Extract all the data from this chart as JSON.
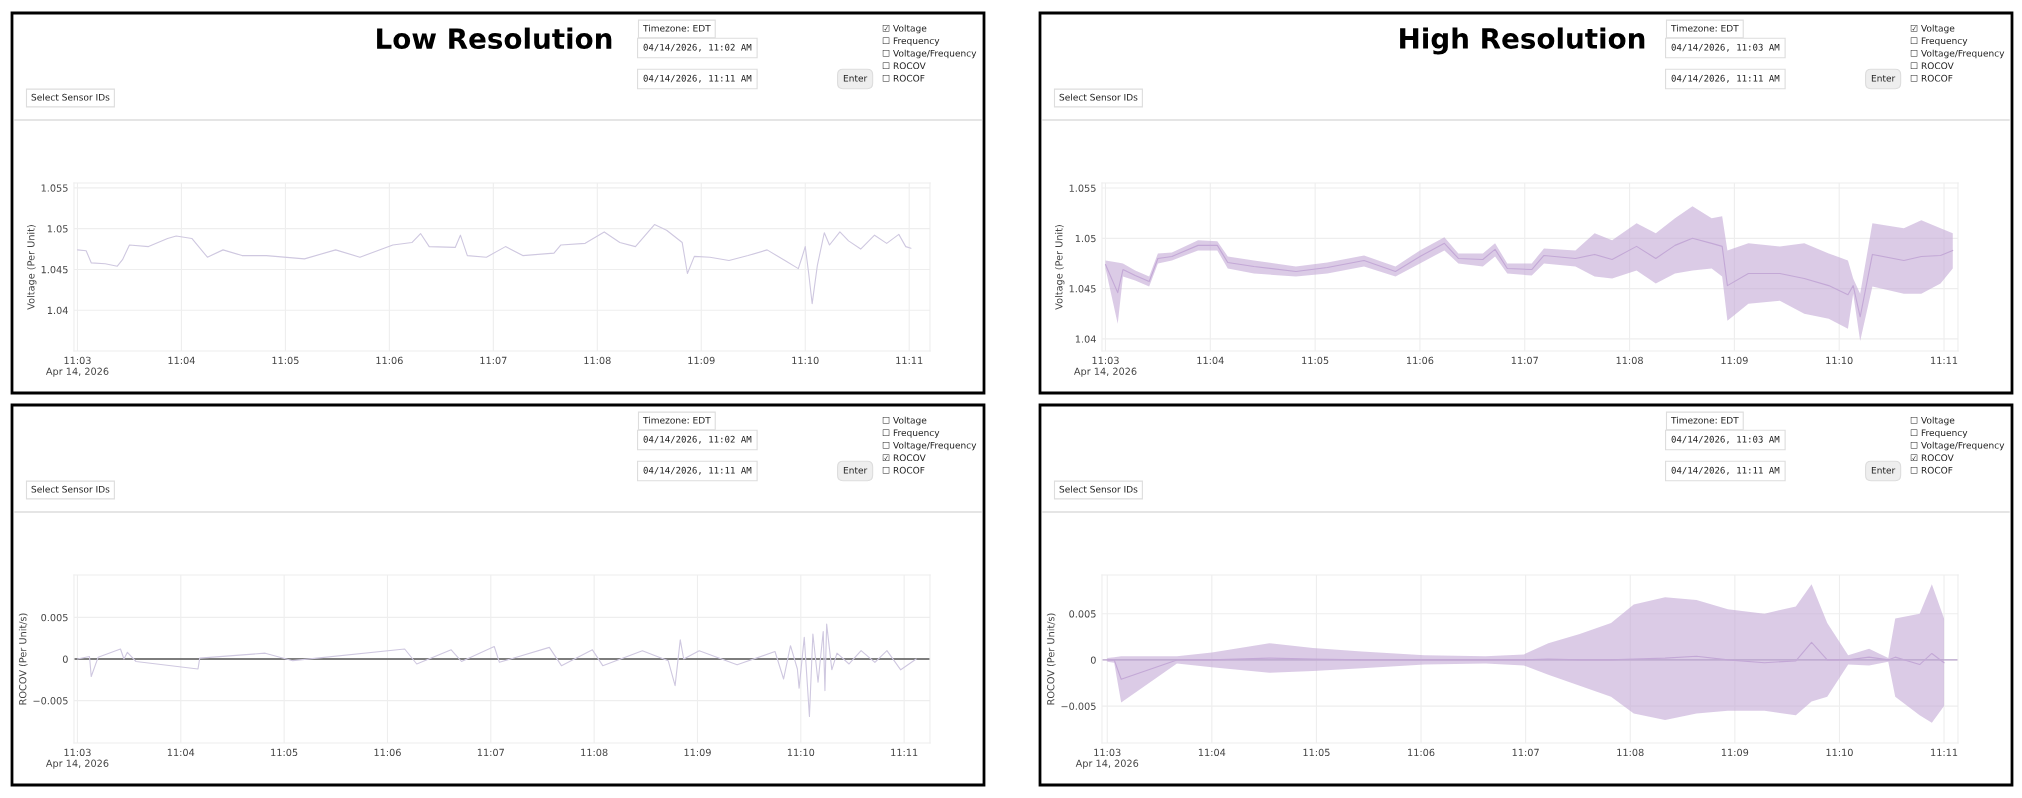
{
  "chart_data": [
    {
      "type": "line",
      "title": "Low Resolution",
      "ylabel": "Voltage (Per Unit)",
      "annotations": [
        "Timezone: EDT",
        "04/14/2026, 11:02 AM",
        "04/14/2026, 11:11 AM",
        "Enter",
        "Select Sensor IDs",
        "☑ Voltage",
        "☐ Frequency",
        "☐ Voltage/Frequency",
        "☐ ROCOV",
        "☐ ROCOF"
      ],
      "x": [
        "2026-04-14T11:03:00",
        "2026-04-14T11:03:05",
        "2026-04-14T11:03:08",
        "2026-04-14T11:03:16",
        "2026-04-14T11:03:23",
        "2026-04-14T11:03:26",
        "2026-04-14T11:03:30",
        "2026-04-14T11:03:41",
        "2026-04-14T11:03:52",
        "2026-04-14T11:03:57",
        "2026-04-14T11:04:06",
        "2026-04-14T11:04:15",
        "2026-04-14T11:04:24",
        "2026-04-14T11:04:35",
        "2026-04-14T11:04:49",
        "2026-04-14T11:05:11",
        "2026-04-14T11:05:29",
        "2026-04-14T11:05:43",
        "2026-04-14T11:06:02",
        "2026-04-14T11:06:13",
        "2026-04-14T11:06:18",
        "2026-04-14T11:06:23",
        "2026-04-14T11:06:38",
        "2026-04-14T11:06:41",
        "2026-04-14T11:06:45",
        "2026-04-14T11:06:56",
        "2026-04-14T11:07:07",
        "2026-04-14T11:07:17",
        "2026-04-14T11:07:35",
        "2026-04-14T11:07:39",
        "2026-04-14T11:07:53",
        "2026-04-14T11:08:04",
        "2026-04-14T11:08:13",
        "2026-04-14T11:08:22",
        "2026-04-14T11:08:33",
        "2026-04-14T11:08:40",
        "2026-04-14T11:08:49",
        "2026-04-14T11:08:52",
        "2026-04-14T11:08:56",
        "2026-04-14T11:09:05",
        "2026-04-14T11:09:16",
        "2026-04-14T11:09:27",
        "2026-04-14T11:09:38",
        "2026-04-14T11:09:49",
        "2026-04-14T11:09:56",
        "2026-04-14T11:09:58",
        "2026-04-14T11:10:00",
        "2026-04-14T11:10:02",
        "2026-04-14T11:10:04",
        "2026-04-14T11:10:07",
        "2026-04-14T11:10:11",
        "2026-04-14T11:10:14",
        "2026-04-14T11:10:20",
        "2026-04-14T11:10:25",
        "2026-04-14T11:10:32",
        "2026-04-14T11:10:40",
        "2026-04-14T11:10:47",
        "2026-04-14T11:10:54",
        "2026-04-14T11:10:58",
        "2026-04-14T11:11:01"
      ],
      "series": [
        {
          "color": "#cfc8e0",
          "values": [
            1.0474,
            1.0473,
            1.0458,
            1.0457,
            1.0454,
            1.0462,
            1.048,
            1.0478,
            1.0488,
            1.0491,
            1.0488,
            1.0465,
            1.0474,
            1.0467,
            1.0467,
            1.0463,
            1.0474,
            1.0465,
            1.048,
            1.0483,
            1.0494,
            1.0478,
            1.0477,
            1.0492,
            1.0467,
            1.0465,
            1.0478,
            1.0467,
            1.047,
            1.048,
            1.0482,
            1.0496,
            1.0483,
            1.0478,
            1.0505,
            1.0498,
            1.0483,
            1.0445,
            1.0466,
            1.0465,
            1.0461,
            1.0467,
            1.0474,
            1.046,
            1.0451,
            1.0464,
            1.0478,
            1.0445,
            1.0408,
            1.0455,
            1.0495,
            1.048,
            1.0496,
            1.0485,
            1.0475,
            1.0492,
            1.0482,
            1.0493,
            1.0478,
            1.0476
          ]
        }
      ],
      "xlim": [
        "2026-04-14T11:02:58",
        "2026-04-14T11:11:12"
      ],
      "ylim": [
        1.035,
        1.0556
      ],
      "xticks": [
        {
          "value": "2026-04-14T11:03",
          "label": "11:03\nApr 14, 2026"
        },
        {
          "value": "2026-04-14T11:04",
          "label": "11:04"
        },
        {
          "value": "2026-04-14T11:05",
          "label": "11:05"
        },
        {
          "value": "2026-04-14T11:06",
          "label": "11:06"
        },
        {
          "value": "2026-04-14T11:07",
          "label": "11:07"
        },
        {
          "value": "2026-04-14T11:08",
          "label": "11:08"
        },
        {
          "value": "2026-04-14T11:09",
          "label": "11:09"
        },
        {
          "value": "2026-04-14T11:10",
          "label": "11:10"
        },
        {
          "value": "2026-04-14T11:11",
          "label": "11:11"
        }
      ],
      "yticks": [
        1.04,
        1.045,
        1.05,
        1.055
      ],
      "grid": true
    },
    {
      "type": "line",
      "title": "High Resolution",
      "ylabel": "Voltage (Per Unit)",
      "annotations": [
        "Timezone: EDT",
        "04/14/2026, 11:03 AM",
        "04/14/2026, 11:11 AM",
        "Enter",
        "Select Sensor IDs",
        "☑ Voltage",
        "☐ Frequency",
        "☐ Voltage/Frequency",
        "☐ ROCOV",
        "☐ ROCOF"
      ],
      "x": [
        "2026-04-14T11:03:00",
        "2026-04-14T11:03:07",
        "2026-04-14T11:03:10",
        "2026-04-14T11:03:17",
        "2026-04-14T11:03:25",
        "2026-04-14T11:03:30",
        "2026-04-14T11:03:38",
        "2026-04-14T11:03:53",
        "2026-04-14T11:04:04",
        "2026-04-14T11:04:10",
        "2026-04-14T11:04:25",
        "2026-04-14T11:04:49",
        "2026-04-14T11:05:07",
        "2026-04-14T11:05:28",
        "2026-04-14T11:05:46",
        "2026-04-14T11:06:00",
        "2026-04-14T11:06:14",
        "2026-04-14T11:06:22",
        "2026-04-14T11:06:36",
        "2026-04-14T11:06:43",
        "2026-04-14T11:06:50",
        "2026-04-14T11:07:04",
        "2026-04-14T11:07:11",
        "2026-04-14T11:07:29",
        "2026-04-14T11:07:40",
        "2026-04-14T11:07:50",
        "2026-04-14T11:08:04",
        "2026-04-14T11:08:15",
        "2026-04-14T11:08:26",
        "2026-04-14T11:08:36",
        "2026-04-14T11:08:47",
        "2026-04-14T11:08:53",
        "2026-04-14T11:08:56",
        "2026-04-14T11:09:08",
        "2026-04-14T11:09:26",
        "2026-04-14T11:09:40",
        "2026-04-14T11:09:54",
        "2026-04-14T11:10:05",
        "2026-04-14T11:10:08",
        "2026-04-14T11:10:12",
        "2026-04-14T11:10:19",
        "2026-04-14T11:10:37",
        "2026-04-14T11:10:47",
        "2026-04-14T11:10:58",
        "2026-04-14T11:11:05"
      ],
      "series": [
        {
          "color": "#c3a8d6",
          "values": [
            1.0474,
            1.0446,
            1.0469,
            1.0463,
            1.0457,
            1.048,
            1.0482,
            1.0493,
            1.0493,
            1.0476,
            1.0472,
            1.0467,
            1.0471,
            1.0478,
            1.0467,
            1.0482,
            1.0495,
            1.048,
            1.0479,
            1.0489,
            1.047,
            1.0469,
            1.0483,
            1.048,
            1.0484,
            1.0479,
            1.0492,
            1.048,
            1.0493,
            1.05,
            1.0495,
            1.0492,
            1.0453,
            1.0465,
            1.0465,
            1.046,
            1.0453,
            1.0444,
            1.0453,
            1.0422,
            1.0484,
            1.0478,
            1.0482,
            1.0483,
            1.0488
          ],
          "lower": [
            1.047,
            1.0415,
            1.0462,
            1.0458,
            1.0452,
            1.0475,
            1.0478,
            1.0488,
            1.0488,
            1.047,
            1.0465,
            1.0462,
            1.0465,
            1.0472,
            1.0462,
            1.0475,
            1.0488,
            1.0475,
            1.0472,
            1.0482,
            1.0465,
            1.0463,
            1.0475,
            1.0472,
            1.0462,
            1.046,
            1.0468,
            1.0455,
            1.0465,
            1.0468,
            1.047,
            1.0462,
            1.0418,
            1.0435,
            1.0438,
            1.0425,
            1.042,
            1.041,
            1.0445,
            1.0398,
            1.0452,
            1.0445,
            1.0445,
            1.0455,
            1.047
          ],
          "upper": [
            1.0478,
            1.0476,
            1.0475,
            1.0468,
            1.0462,
            1.0485,
            1.0486,
            1.0498,
            1.0497,
            1.0482,
            1.0478,
            1.0472,
            1.0476,
            1.0483,
            1.0472,
            1.0488,
            1.0501,
            1.0485,
            1.0485,
            1.0495,
            1.0475,
            1.0475,
            1.049,
            1.0488,
            1.0505,
            1.0498,
            1.0515,
            1.0505,
            1.052,
            1.0532,
            1.052,
            1.0522,
            1.0488,
            1.0495,
            1.0492,
            1.0495,
            1.0485,
            1.0478,
            1.046,
            1.0445,
            1.0515,
            1.051,
            1.0518,
            1.051,
            1.0505
          ]
        }
      ],
      "xlim": [
        "2026-04-14T11:02:58",
        "2026-04-14T11:11:08"
      ],
      "ylim": [
        1.0388,
        1.0555
      ],
      "xticks": [
        {
          "value": "2026-04-14T11:03",
          "label": "11:03\nApr 14, 2026"
        },
        {
          "value": "2026-04-14T11:04",
          "label": "11:04"
        },
        {
          "value": "2026-04-14T11:05",
          "label": "11:05"
        },
        {
          "value": "2026-04-14T11:06",
          "label": "11:06"
        },
        {
          "value": "2026-04-14T11:07",
          "label": "11:07"
        },
        {
          "value": "2026-04-14T11:08",
          "label": "11:08"
        },
        {
          "value": "2026-04-14T11:09",
          "label": "11:09"
        },
        {
          "value": "2026-04-14T11:10",
          "label": "11:10"
        },
        {
          "value": "2026-04-14T11:11",
          "label": "11:11"
        }
      ],
      "yticks": [
        1.04,
        1.045,
        1.05,
        1.055
      ],
      "grid": true
    },
    {
      "type": "line",
      "ylabel": "ROCOV (Per Unit/s)",
      "annotations": [
        "Timezone: EDT",
        "04/14/2026, 11:02 AM",
        "04/14/2026, 11:11 AM",
        "Enter",
        "Select Sensor IDs",
        "☐ Voltage",
        "☐ Frequency",
        "☐ Voltage/Frequency",
        "☑ ROCOV",
        "☐ ROCOF"
      ],
      "x": [
        "2026-04-14T11:03:00",
        "2026-04-14T11:03:07",
        "2026-04-14T11:03:08",
        "2026-04-14T11:03:12",
        "2026-04-14T11:03:25",
        "2026-04-14T11:03:27",
        "2026-04-14T11:03:29",
        "2026-04-14T11:03:34",
        "2026-04-14T11:04:10",
        "2026-04-14T11:04:11",
        "2026-04-14T11:04:49",
        "2026-04-14T11:05:05",
        "2026-04-14T11:06:10",
        "2026-04-14T11:06:17",
        "2026-04-14T11:06:37",
        "2026-04-14T11:06:43",
        "2026-04-14T11:07:02",
        "2026-04-14T11:07:05",
        "2026-04-14T11:07:34",
        "2026-04-14T11:07:41",
        "2026-04-14T11:07:59",
        "2026-04-14T11:08:05",
        "2026-04-14T11:08:28",
        "2026-04-14T11:08:43",
        "2026-04-14T11:08:47",
        "2026-04-14T11:08:50",
        "2026-04-14T11:08:52",
        "2026-04-14T11:09:01",
        "2026-04-14T11:09:23",
        "2026-04-14T11:09:45",
        "2026-04-14T11:09:50",
        "2026-04-14T11:09:54",
        "2026-04-14T11:09:58",
        "2026-04-14T11:09:59",
        "2026-04-14T11:10:02",
        "2026-04-14T11:10:05",
        "2026-04-14T11:10:07",
        "2026-04-14T11:10:10",
        "2026-04-14T11:10:13",
        "2026-04-14T11:10:14",
        "2026-04-14T11:10:15",
        "2026-04-14T11:10:18",
        "2026-04-14T11:10:21",
        "2026-04-14T11:10:28",
        "2026-04-14T11:10:35",
        "2026-04-14T11:10:43",
        "2026-04-14T11:10:50",
        "2026-04-14T11:10:58",
        "2026-04-14T11:11:07"
      ],
      "series": [
        {
          "color": "#cfc8e0",
          "values": [
            0,
            0.0003,
            -0.0021,
            0.0002,
            0.0012,
            0,
            0.0008,
            -0.0003,
            -0.0012,
            0.0001,
            0.0007,
            -0.0002,
            0.0012,
            -0.0006,
            0.0011,
            -0.0003,
            0.0015,
            -0.0004,
            0.0014,
            -0.0008,
            0.0011,
            -0.0008,
            0.001,
            -0.0002,
            -0.0032,
            0.0023,
            0,
            0.001,
            -0.0007,
            0.0009,
            -0.0024,
            0.0016,
            -0.0012,
            -0.0035,
            0.0026,
            -0.0069,
            0.003,
            -0.0028,
            0.0033,
            -0.0038,
            0.0042,
            -0.0013,
            0.0007,
            -0.0006,
            0.001,
            -0.0004,
            0.001,
            -0.0013,
            0
          ]
        }
      ],
      "ref_lines": [
        {
          "axis": "y",
          "value": 0,
          "color": "#555555"
        }
      ],
      "xlim": [
        "2026-04-14T11:02:58",
        "2026-04-14T11:11:15"
      ],
      "ylim": [
        -0.0101,
        0.0101
      ],
      "xticks": [
        {
          "value": "2026-04-14T11:03",
          "label": "11:03\nApr 14, 2026"
        },
        {
          "value": "2026-04-14T11:04",
          "label": "11:04"
        },
        {
          "value": "2026-04-14T11:05",
          "label": "11:05"
        },
        {
          "value": "2026-04-14T11:06",
          "label": "11:06"
        },
        {
          "value": "2026-04-14T11:07",
          "label": "11:07"
        },
        {
          "value": "2026-04-14T11:08",
          "label": "11:08"
        },
        {
          "value": "2026-04-14T11:09",
          "label": "11:09"
        },
        {
          "value": "2026-04-14T11:10",
          "label": "11:10"
        },
        {
          "value": "2026-04-14T11:11",
          "label": "11:11"
        }
      ],
      "yticks": [
        {
          "value": -0.005,
          "label": "−0.005"
        },
        0,
        0.005
      ],
      "grid": true
    },
    {
      "type": "line",
      "ylabel": "ROCOV (Per Unit/s)",
      "annotations": [
        "Timezone: EDT",
        "04/14/2026, 11:03 AM",
        "04/14/2026, 11:11 AM",
        "Enter",
        "Select Sensor IDs",
        "☐ Voltage",
        "☐ Frequency",
        "☐ Voltage/Frequency",
        "☑ ROCOV",
        "☐ ROCOF"
      ],
      "x": [
        "2026-04-14T11:03:00",
        "2026-04-14T11:03:04",
        "2026-04-14T11:03:08",
        "2026-04-14T11:03:40",
        "2026-04-14T11:04:00",
        "2026-04-14T11:04:33",
        "2026-04-14T11:04:58",
        "2026-04-14T11:05:26",
        "2026-04-14T11:06:02",
        "2026-04-14T11:06:37",
        "2026-04-14T11:06:59",
        "2026-04-14T11:07:13",
        "2026-04-14T11:07:31",
        "2026-04-14T11:07:49",
        "2026-04-14T11:08:02",
        "2026-04-14T11:08:20",
        "2026-04-14T11:08:38",
        "2026-04-14T11:08:56",
        "2026-04-14T11:09:17",
        "2026-04-14T11:09:35",
        "2026-04-14T11:09:44",
        "2026-04-14T11:09:53",
        "2026-04-14T11:10:05",
        "2026-04-14T11:10:17",
        "2026-04-14T11:10:28",
        "2026-04-14T11:10:32",
        "2026-04-14T11:10:46",
        "2026-04-14T11:10:53",
        "2026-04-14T11:11:00"
      ],
      "series": [
        {
          "color": "#c3a8d6",
          "values": [
            0,
            0,
            -0.0021,
            0,
            0,
            0.0002,
            0.0001,
            0,
            0,
            0,
            0,
            0.0001,
            0,
            0,
            0.0001,
            0.0002,
            0.0004,
            0,
            -0.0003,
            -0.0001,
            0.0019,
            0,
            0,
            0.0003,
            0,
            0.0003,
            -0.0005,
            0.0007,
            -0.0003
          ],
          "lower": [
            -0.0002,
            -0.0003,
            -0.0046,
            -0.0004,
            -0.0008,
            -0.0014,
            -0.0012,
            -0.0009,
            -0.0005,
            -0.0004,
            -0.0006,
            -0.0016,
            -0.0028,
            -0.004,
            -0.0058,
            -0.0065,
            -0.0058,
            -0.0055,
            -0.0055,
            -0.006,
            -0.0045,
            -0.004,
            -0.0005,
            -0.0006,
            -0.0002,
            -0.004,
            -0.006,
            -0.0068,
            -0.005
          ],
          "upper": [
            0.0002,
            0.0003,
            0.0004,
            0.0004,
            0.0008,
            0.0018,
            0.0013,
            0.0009,
            0.0005,
            0.0004,
            0.0006,
            0.0018,
            0.0028,
            0.004,
            0.006,
            0.0068,
            0.0065,
            0.0055,
            0.005,
            0.0058,
            0.0082,
            0.004,
            0.0005,
            0.0012,
            0.0002,
            0.0045,
            0.005,
            0.0082,
            0.0045
          ]
        }
      ],
      "ref_lines": [
        {
          "axis": "y",
          "value": 0,
          "color": "#b9a3cc"
        }
      ],
      "xlim": [
        "2026-04-14T11:02:57",
        "2026-04-14T11:11:08"
      ],
      "ylim": [
        -0.009,
        0.0092
      ],
      "xticks": [
        {
          "value": "2026-04-14T11:03",
          "label": "11:03\nApr 14, 2026"
        },
        {
          "value": "2026-04-14T11:04",
          "label": "11:04"
        },
        {
          "value": "2026-04-14T11:05",
          "label": "11:05"
        },
        {
          "value": "2026-04-14T11:06",
          "label": "11:06"
        },
        {
          "value": "2026-04-14T11:07",
          "label": "11:07"
        },
        {
          "value": "2026-04-14T11:08",
          "label": "11:08"
        },
        {
          "value": "2026-04-14T11:09",
          "label": "11:09"
        },
        {
          "value": "2026-04-14T11:10",
          "label": "11:10"
        },
        {
          "value": "2026-04-14T11:11",
          "label": "11:11"
        }
      ],
      "yticks": [
        {
          "value": -0.005,
          "label": "−0.005"
        },
        0,
        0.005
      ],
      "grid": true
    }
  ]
}
